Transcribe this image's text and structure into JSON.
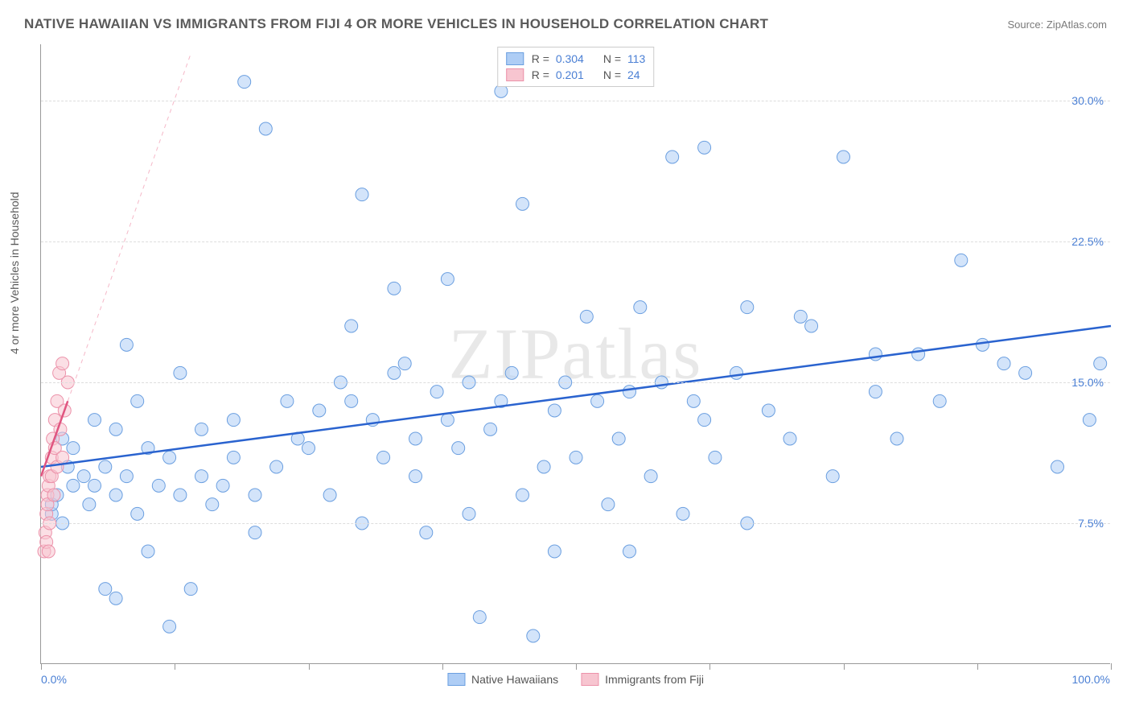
{
  "title": "NATIVE HAWAIIAN VS IMMIGRANTS FROM FIJI 4 OR MORE VEHICLES IN HOUSEHOLD CORRELATION CHART",
  "source": "Source: ZipAtlas.com",
  "y_axis_label": "4 or more Vehicles in Household",
  "watermark": "ZIPatlas",
  "x_label_min": "0.0%",
  "x_label_max": "100.0%",
  "chart": {
    "type": "scatter",
    "xlim": [
      0,
      100
    ],
    "ylim": [
      0,
      33
    ],
    "y_ticks": [
      7.5,
      15.0,
      22.5,
      30.0
    ],
    "y_tick_labels": [
      "7.5%",
      "15.0%",
      "22.5%",
      "30.0%"
    ],
    "x_ticks": [
      0,
      12.5,
      25,
      37.5,
      50,
      62.5,
      75,
      87.5,
      100
    ],
    "background_color": "#ffffff",
    "grid_color": "#dddddd",
    "axis_color": "#999999",
    "marker_radius": 8,
    "marker_opacity": 0.55,
    "series": [
      {
        "name": "Native Hawaiians",
        "color_fill": "#aecdf5",
        "color_stroke": "#6b9fe0",
        "R": "0.304",
        "N": "113",
        "trend": {
          "x1": 0,
          "y1": 10.5,
          "x2": 100,
          "y2": 18.0,
          "color": "#2a63cf",
          "width": 2.5,
          "dash": "none"
        },
        "trend_ext": null,
        "points": [
          [
            1,
            8.0
          ],
          [
            1,
            8.5
          ],
          [
            1.5,
            9.0
          ],
          [
            2,
            7.5
          ],
          [
            2,
            12.0
          ],
          [
            2.5,
            10.5
          ],
          [
            3,
            9.5
          ],
          [
            3,
            11.5
          ],
          [
            4,
            10.0
          ],
          [
            4.5,
            8.5
          ],
          [
            5,
            9.5
          ],
          [
            5,
            13.0
          ],
          [
            6,
            4.0
          ],
          [
            6,
            10.5
          ],
          [
            7,
            3.5
          ],
          [
            7,
            9.0
          ],
          [
            7,
            12.5
          ],
          [
            8,
            17.0
          ],
          [
            8,
            10.0
          ],
          [
            9,
            8.0
          ],
          [
            9,
            14.0
          ],
          [
            10,
            11.5
          ],
          [
            10,
            6.0
          ],
          [
            11,
            9.5
          ],
          [
            12,
            2.0
          ],
          [
            12,
            11.0
          ],
          [
            13,
            9.0
          ],
          [
            13,
            15.5
          ],
          [
            14,
            4.0
          ],
          [
            15,
            10.0
          ],
          [
            15,
            12.5
          ],
          [
            16,
            8.5
          ],
          [
            17,
            9.5
          ],
          [
            18,
            13.0
          ],
          [
            18,
            11.0
          ],
          [
            19,
            31.0
          ],
          [
            20,
            9.0
          ],
          [
            20,
            7.0
          ],
          [
            21,
            28.5
          ],
          [
            22,
            10.5
          ],
          [
            23,
            14.0
          ],
          [
            24,
            12.0
          ],
          [
            25,
            11.5
          ],
          [
            26,
            13.5
          ],
          [
            27,
            9.0
          ],
          [
            28,
            15.0
          ],
          [
            29,
            14.0
          ],
          [
            29,
            18.0
          ],
          [
            30,
            7.5
          ],
          [
            30,
            25.0
          ],
          [
            31,
            13.0
          ],
          [
            32,
            11.0
          ],
          [
            33,
            15.5
          ],
          [
            33,
            20.0
          ],
          [
            34,
            16.0
          ],
          [
            35,
            12.0
          ],
          [
            35,
            10.0
          ],
          [
            36,
            7.0
          ],
          [
            37,
            14.5
          ],
          [
            38,
            13.0
          ],
          [
            38,
            20.5
          ],
          [
            39,
            11.5
          ],
          [
            40,
            15.0
          ],
          [
            40,
            8.0
          ],
          [
            41,
            2.5
          ],
          [
            42,
            12.5
          ],
          [
            43,
            14.0
          ],
          [
            43,
            30.5
          ],
          [
            44,
            15.5
          ],
          [
            45,
            9.0
          ],
          [
            45,
            24.5
          ],
          [
            46,
            1.5
          ],
          [
            47,
            10.5
          ],
          [
            48,
            13.5
          ],
          [
            48,
            6.0
          ],
          [
            49,
            15.0
          ],
          [
            50,
            11.0
          ],
          [
            51,
            18.5
          ],
          [
            52,
            14.0
          ],
          [
            53,
            8.5
          ],
          [
            54,
            12.0
          ],
          [
            55,
            14.5
          ],
          [
            55,
            6.0
          ],
          [
            56,
            19.0
          ],
          [
            57,
            10.0
          ],
          [
            58,
            15.0
          ],
          [
            59,
            27.0
          ],
          [
            60,
            8.0
          ],
          [
            61,
            14.0
          ],
          [
            62,
            13.0
          ],
          [
            62,
            27.5
          ],
          [
            63,
            11.0
          ],
          [
            65,
            15.5
          ],
          [
            66,
            7.5
          ],
          [
            66,
            19.0
          ],
          [
            68,
            13.5
          ],
          [
            70,
            12.0
          ],
          [
            71,
            18.5
          ],
          [
            72,
            18.0
          ],
          [
            74,
            10.0
          ],
          [
            75,
            27.0
          ],
          [
            78,
            16.5
          ],
          [
            78,
            14.5
          ],
          [
            80,
            12.0
          ],
          [
            82,
            16.5
          ],
          [
            84,
            14.0
          ],
          [
            86,
            21.5
          ],
          [
            88,
            17.0
          ],
          [
            90,
            16.0
          ],
          [
            92,
            15.5
          ],
          [
            95,
            10.5
          ],
          [
            98,
            13.0
          ],
          [
            99,
            16.0
          ]
        ]
      },
      {
        "name": "Immigrants from Fiji",
        "color_fill": "#f7c5d0",
        "color_stroke": "#ec92aa",
        "R": "0.201",
        "N": "24",
        "trend": {
          "x1": 0,
          "y1": 10.0,
          "x2": 2.5,
          "y2": 14.0,
          "color": "#e05580",
          "width": 2.5,
          "dash": "none"
        },
        "trend_ext": {
          "x1": 2.5,
          "y1": 14.0,
          "x2": 14,
          "y2": 32.5,
          "color": "#f5b8c8",
          "width": 1,
          "dash": "5,5"
        },
        "points": [
          [
            0.3,
            6.0
          ],
          [
            0.4,
            7.0
          ],
          [
            0.5,
            6.5
          ],
          [
            0.5,
            8.0
          ],
          [
            0.6,
            9.0
          ],
          [
            0.6,
            8.5
          ],
          [
            0.7,
            9.5
          ],
          [
            0.7,
            6.0
          ],
          [
            0.8,
            10.0
          ],
          [
            0.8,
            7.5
          ],
          [
            1.0,
            11.0
          ],
          [
            1.0,
            10.0
          ],
          [
            1.1,
            12.0
          ],
          [
            1.2,
            9.0
          ],
          [
            1.3,
            13.0
          ],
          [
            1.3,
            11.5
          ],
          [
            1.5,
            14.0
          ],
          [
            1.5,
            10.5
          ],
          [
            1.7,
            15.5
          ],
          [
            1.8,
            12.5
          ],
          [
            2.0,
            16.0
          ],
          [
            2.0,
            11.0
          ],
          [
            2.2,
            13.5
          ],
          [
            2.5,
            15.0
          ]
        ]
      }
    ]
  },
  "legend_bottom": [
    {
      "label": "Native Hawaiians",
      "fill": "#aecdf5",
      "stroke": "#6b9fe0"
    },
    {
      "label": "Immigrants from Fiji",
      "fill": "#f7c5d0",
      "stroke": "#ec92aa"
    }
  ]
}
